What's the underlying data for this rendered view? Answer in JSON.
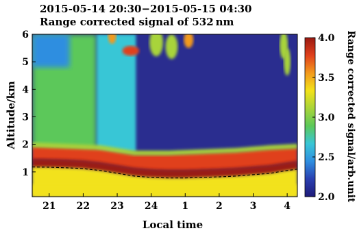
{
  "chart_data": {
    "type": "heatmap",
    "title": "2015-05-14 20:30−2015-05-15 04:30",
    "subtitle": "Range corrected signal of 532 nm",
    "xlabel": "Local time",
    "ylabel": "Altitude/km",
    "colorbar_label": "Range corrected signal/arb.unit",
    "x_ticks": [
      "21",
      "22",
      "23",
      "24",
      "1",
      "2",
      "3",
      "4"
    ],
    "x_tick_hours": [
      21,
      22,
      23,
      24,
      25,
      26,
      27,
      28
    ],
    "xlim_hours": [
      20.5,
      28.3
    ],
    "y_ticks": [
      "1",
      "2",
      "3",
      "4",
      "5",
      "6"
    ],
    "ylim": [
      0.1,
      6.0
    ],
    "colorbar_ticks": [
      "2.0",
      "2.5",
      "3.0",
      "3.5",
      "4.0"
    ],
    "clim": [
      2.0,
      4.0
    ],
    "colormap": [
      "#1e1a78",
      "#2a3fb0",
      "#2f8ee0",
      "#39c6d6",
      "#5cc85a",
      "#a8d43a",
      "#f2e21a",
      "#f39a1c",
      "#e0401c",
      "#9a1a12"
    ],
    "boundary_layer_top_km": [
      [
        20.5,
        1.18
      ],
      [
        21.0,
        1.17
      ],
      [
        21.5,
        1.15
      ],
      [
        22.0,
        1.12
      ],
      [
        22.5,
        1.05
      ],
      [
        23.0,
        0.95
      ],
      [
        23.5,
        0.85
      ],
      [
        24.0,
        0.8
      ],
      [
        24.5,
        0.78
      ],
      [
        25.0,
        0.78
      ],
      [
        25.5,
        0.8
      ],
      [
        26.0,
        0.82
      ],
      [
        26.5,
        0.85
      ],
      [
        27.0,
        0.9
      ],
      [
        27.5,
        0.95
      ],
      [
        28.0,
        1.05
      ],
      [
        28.3,
        1.1
      ]
    ],
    "cloud_layer_top_km": [
      [
        20.5,
        1.95
      ],
      [
        21.5,
        1.9
      ],
      [
        22.5,
        1.85
      ],
      [
        23.5,
        1.65
      ],
      [
        24.5,
        1.65
      ],
      [
        25.5,
        1.7
      ],
      [
        26.5,
        1.75
      ],
      [
        27.5,
        1.85
      ],
      [
        28.3,
        1.9
      ]
    ]
  },
  "colors": {
    "dashed_line": "#000000"
  }
}
